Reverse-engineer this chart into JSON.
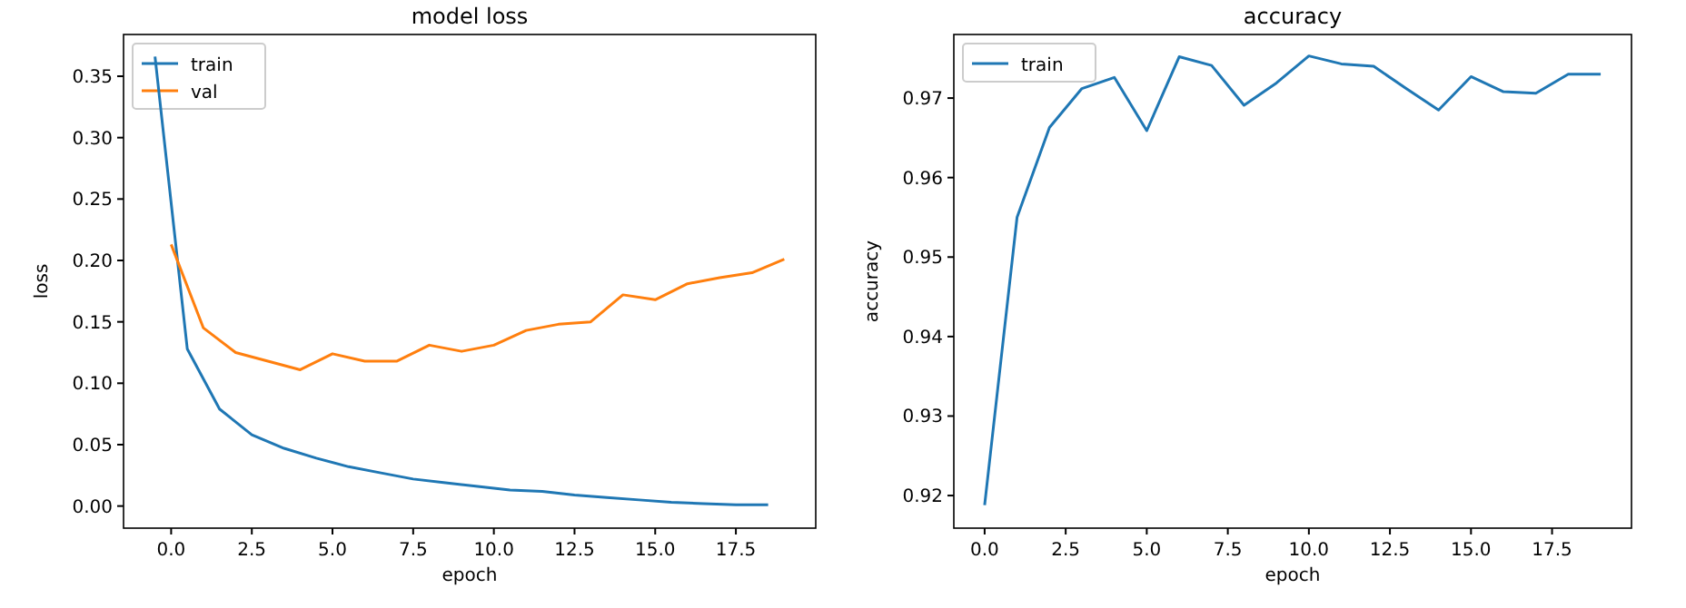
{
  "chart_data": [
    {
      "type": "line",
      "title": "model loss",
      "xlabel": "epoch",
      "ylabel": "loss",
      "legend": "top left",
      "grid": false,
      "xlim": [
        -1.475,
        19.975
      ],
      "ylim": [
        -0.018,
        0.384
      ],
      "xticks": [
        {
          "value": 0,
          "label": "0.0"
        },
        {
          "value": 2.5,
          "label": "2.5"
        },
        {
          "value": 5,
          "label": "5.0"
        },
        {
          "value": 7.5,
          "label": "7.5"
        },
        {
          "value": 10,
          "label": "10.0"
        },
        {
          "value": 12.5,
          "label": "12.5"
        },
        {
          "value": 15,
          "label": "15.0"
        },
        {
          "value": 17.5,
          "label": "17.5"
        }
      ],
      "yticks": [
        {
          "value": 0,
          "label": "0.00"
        },
        {
          "value": 0.05,
          "label": "0.05"
        },
        {
          "value": 0.1,
          "label": "0.10"
        },
        {
          "value": 0.15,
          "label": "0.15"
        },
        {
          "value": 0.2,
          "label": "0.20"
        },
        {
          "value": 0.25,
          "label": "0.25"
        },
        {
          "value": 0.3,
          "label": "0.30"
        },
        {
          "value": 0.35,
          "label": "0.35"
        }
      ],
      "series": [
        {
          "name": "train",
          "color": "#1f77b4",
          "x": [
            -0.5,
            0.5,
            1.5,
            2.5,
            3.5,
            4.5,
            5.5,
            6.5,
            7.5,
            8.5,
            9.5,
            10.5,
            11.5,
            12.5,
            13.5,
            14.5,
            15.5,
            16.5,
            17.5,
            18.5
          ],
          "values": [
            0.366,
            0.128,
            0.079,
            0.058,
            0.047,
            0.039,
            0.032,
            0.027,
            0.022,
            0.019,
            0.016,
            0.013,
            0.012,
            0.009,
            0.007,
            0.005,
            0.003,
            0.002,
            0.001,
            0.001
          ]
        },
        {
          "name": "val",
          "color": "#ff7f0e",
          "x": [
            0,
            1,
            2,
            3,
            4,
            5,
            6,
            7,
            8,
            9,
            10,
            11,
            12,
            13,
            14,
            15,
            16,
            17,
            18,
            19
          ],
          "values": [
            0.213,
            0.145,
            0.125,
            0.118,
            0.111,
            0.124,
            0.118,
            0.118,
            0.131,
            0.126,
            0.131,
            0.143,
            0.148,
            0.15,
            0.172,
            0.168,
            0.181,
            0.186,
            0.19,
            0.201
          ]
        }
      ]
    },
    {
      "type": "line",
      "title": "accuracy",
      "xlabel": "epoch",
      "ylabel": "accuracy",
      "legend": "top left",
      "grid": false,
      "xlim": [
        -0.95,
        19.95
      ],
      "ylim": [
        0.9159,
        0.978
      ],
      "xticks": [
        {
          "value": 0,
          "label": "0.0"
        },
        {
          "value": 2.5,
          "label": "2.5"
        },
        {
          "value": 5,
          "label": "5.0"
        },
        {
          "value": 7.5,
          "label": "7.5"
        },
        {
          "value": 10,
          "label": "10.0"
        },
        {
          "value": 12.5,
          "label": "12.5"
        },
        {
          "value": 15,
          "label": "15.0"
        },
        {
          "value": 17.5,
          "label": "17.5"
        }
      ],
      "yticks": [
        0.92,
        0.93,
        0.94,
        0.95,
        0.96,
        0.97
      ],
      "series": [
        {
          "name": "train",
          "color": "#1f77b4",
          "x": [
            0,
            1,
            2,
            3,
            4,
            5,
            6,
            7,
            8,
            9,
            10,
            11,
            12,
            13,
            14,
            15,
            16,
            17,
            18,
            19
          ],
          "values": [
            0.9188,
            0.955,
            0.9663,
            0.9712,
            0.9726,
            0.9659,
            0.9752,
            0.9741,
            0.9691,
            0.9719,
            0.9753,
            0.9743,
            0.974,
            0.9712,
            0.9685,
            0.9727,
            0.9708,
            0.9706,
            0.973,
            0.973
          ]
        }
      ]
    }
  ]
}
